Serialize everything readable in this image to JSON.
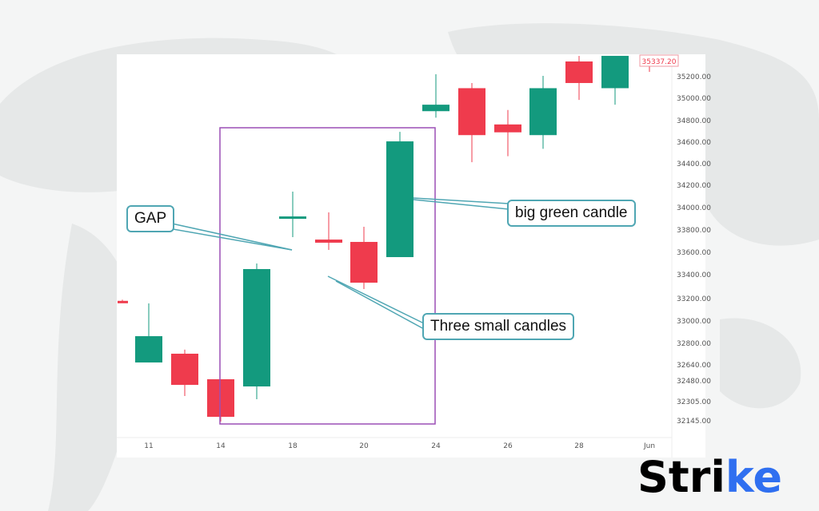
{
  "chart_data": {
    "type": "candlestick",
    "title": "",
    "xlabel": "",
    "ylabel": "",
    "grid": false,
    "colors": {
      "up": "#139a7e",
      "down": "#ef3b4d",
      "highlight_box": "#9b4fb5",
      "callout_border": "#4fa6b3",
      "logo_accent": "#2f6ff0"
    },
    "y_ticks": [
      "35200.00",
      "35000.00",
      "34800.00",
      "34600.00",
      "34400.00",
      "34200.00",
      "34000.00",
      "33800.00",
      "33600.00",
      "33400.00",
      "33200.00",
      "33000.00",
      "32800.00",
      "32640.00",
      "32480.00",
      "32305.00",
      "32145.00"
    ],
    "last_price_label": "35337.20",
    "x_tick_labels": [
      "11",
      "14",
      "18",
      "20",
      "24",
      "26",
      "28",
      "Jun"
    ],
    "candles": [
      {
        "o": 33180,
        "h": 33190,
        "l": 33165,
        "c": 33170
      },
      {
        "o": 32658,
        "h": 33157,
        "l": 32658,
        "c": 32864,
        "x_label": "11"
      },
      {
        "o": 32723,
        "h": 32753,
        "l": 32352,
        "c": 32446
      },
      {
        "o": 32496,
        "h": 32496,
        "l": 32138,
        "c": 32178,
        "x_label": "14"
      },
      {
        "o": 32433,
        "h": 33500,
        "l": 32325,
        "c": 33450
      },
      {
        "o": 33900,
        "h": 34143,
        "l": 33736,
        "c": 33921,
        "x_label": "18"
      },
      {
        "o": 33714,
        "h": 33957,
        "l": 33621,
        "c": 33686
      },
      {
        "o": 33693,
        "h": 33829,
        "l": 33280,
        "c": 33333,
        "x_label": "20"
      },
      {
        "o": 33557,
        "h": 34695,
        "l": 33557,
        "c": 34607
      },
      {
        "o": 34884,
        "h": 35222,
        "l": 34826,
        "c": 34942,
        "x_label": "24"
      },
      {
        "o": 35093,
        "h": 35141,
        "l": 34414,
        "c": 34665
      },
      {
        "o": 34764,
        "h": 34895,
        "l": 34469,
        "c": 34691,
        "x_label": "26"
      },
      {
        "o": 34665,
        "h": 35207,
        "l": 34538,
        "c": 35093
      },
      {
        "o": 35341,
        "h": 35393,
        "l": 34985,
        "c": 35141,
        "x_label": "28"
      },
      {
        "o": 35093,
        "h": 35393,
        "l": 34942,
        "c": 35393
      },
      {
        "o": 35393,
        "h": 35393,
        "l": 35244,
        "c": 35341,
        "x_label": "Jun"
      }
    ],
    "annotations": {
      "gap": "GAP",
      "big_candle": "big green candle",
      "small_candles": "Three small candles"
    }
  },
  "logo": {
    "text_main": "Stri",
    "text_accent": "ke",
    "full": "Strike"
  }
}
